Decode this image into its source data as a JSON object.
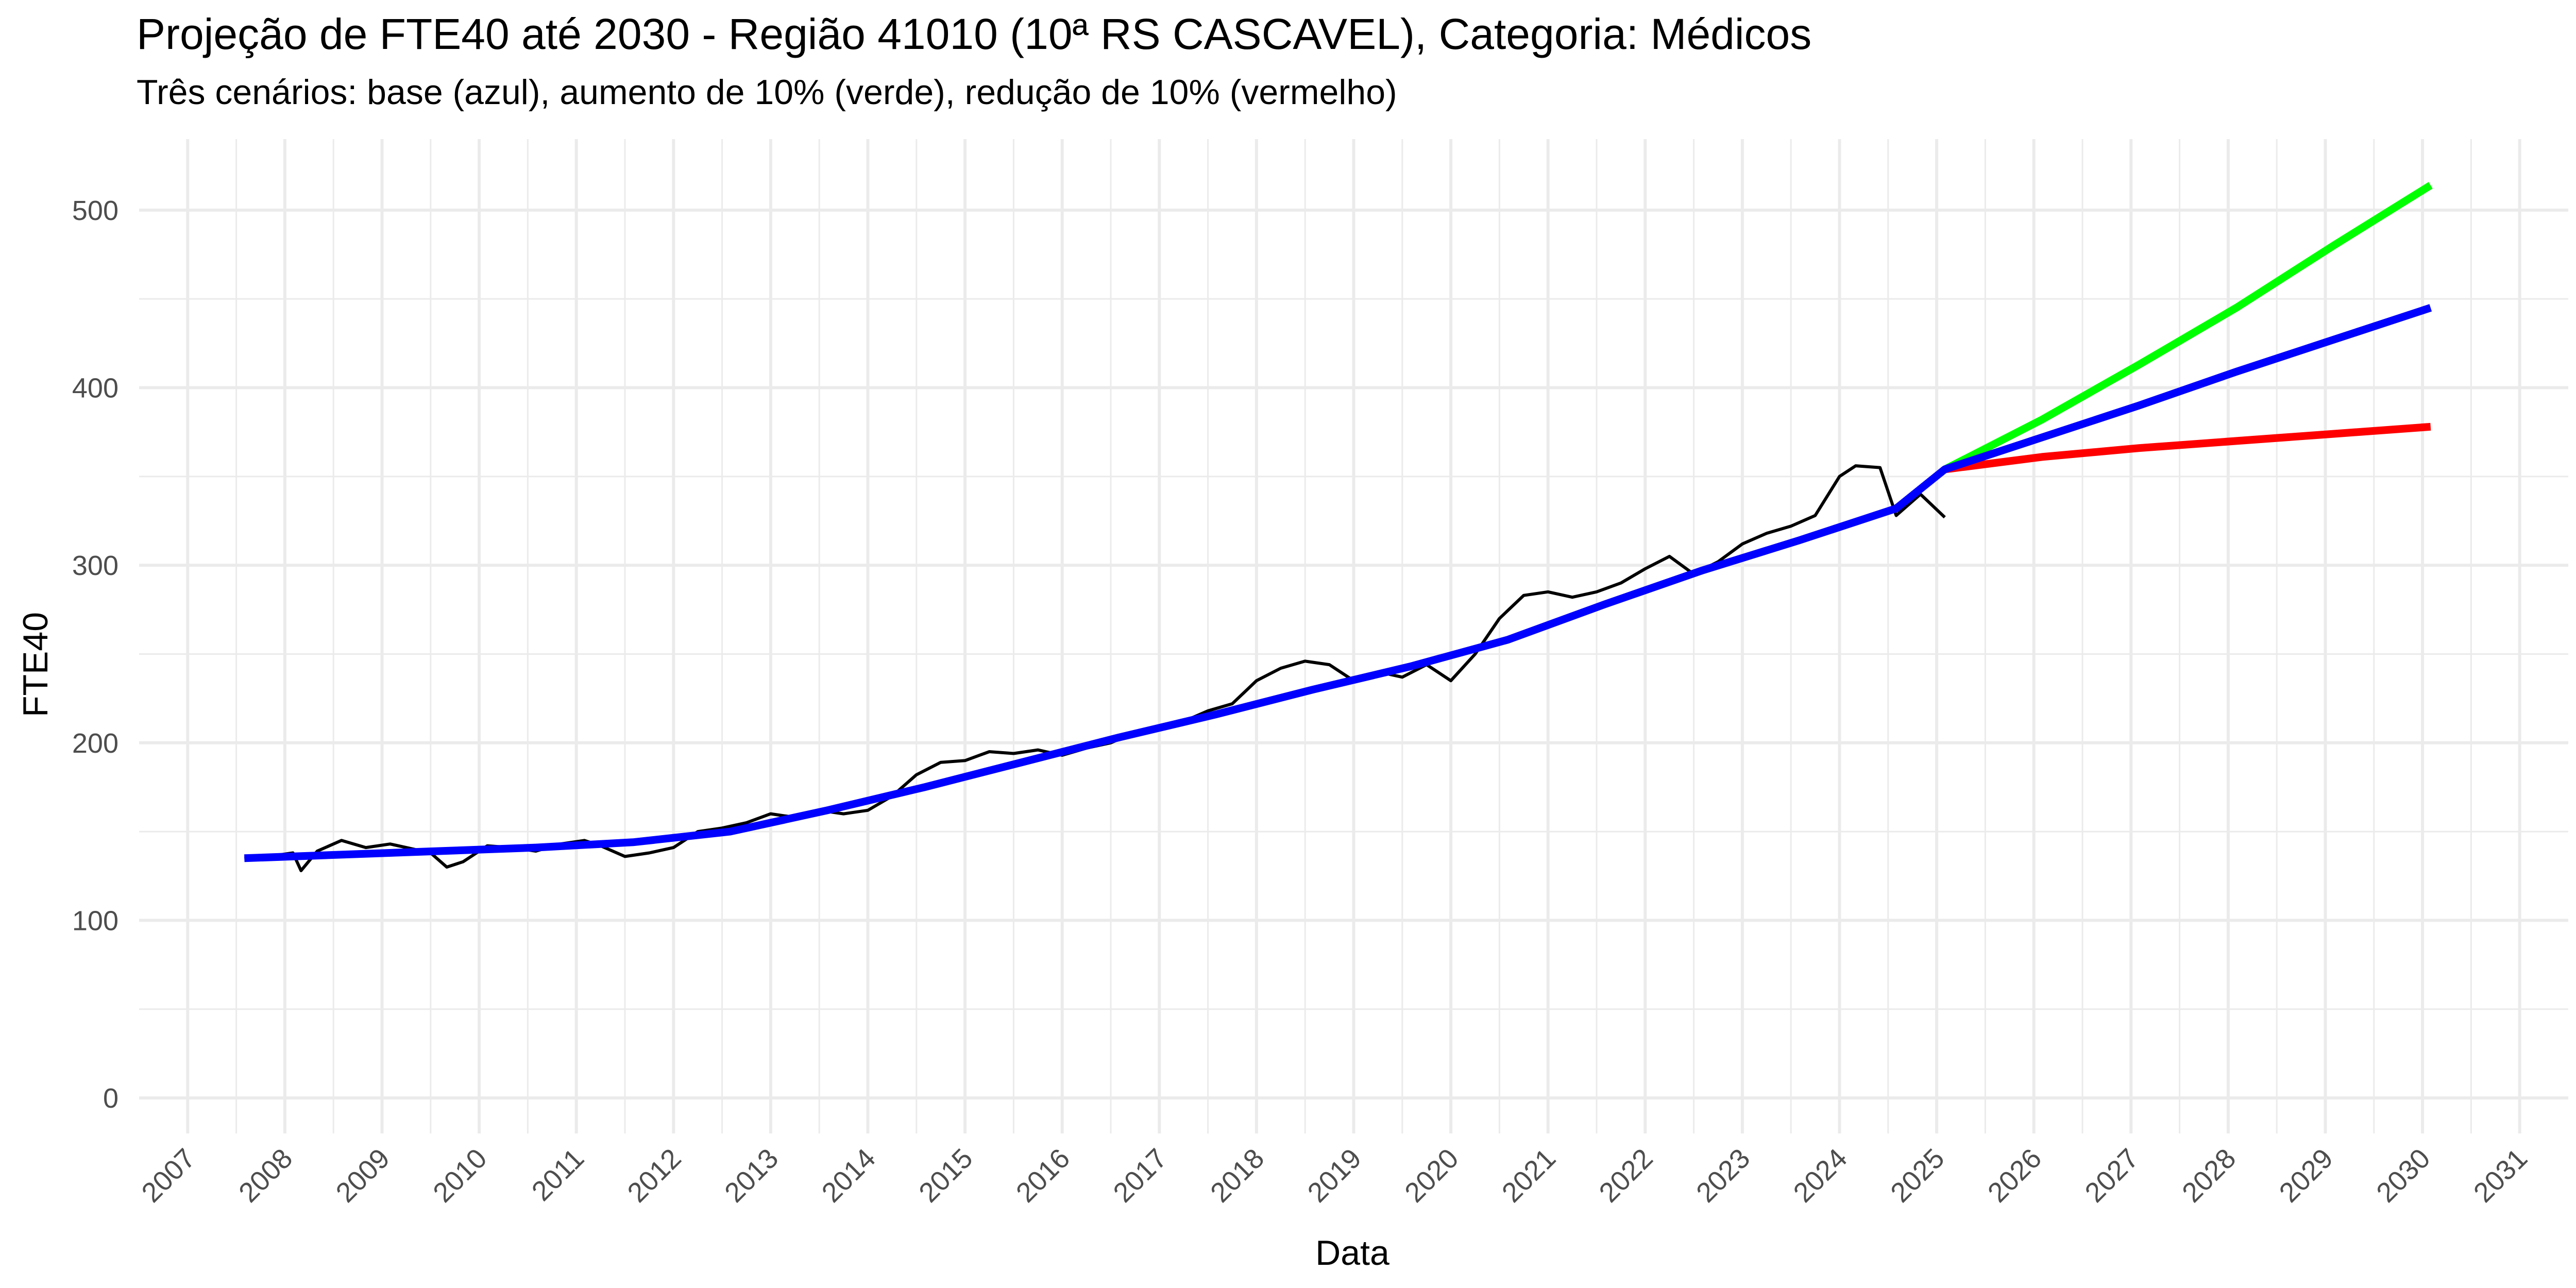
{
  "chart_data": {
    "type": "line",
    "title": "Projeção de FTE40 até 2030 - Região 41010 (10ª RS CASCAVEL), Categoria: Médicos",
    "subtitle": "Três cenários: base (azul), aumento de 10% (verde), redução de 10% (vermelho)",
    "xlabel": "Data",
    "ylabel": "FTE40",
    "xlim": [
      "2006-07-01",
      "2031-07-01"
    ],
    "ylim": [
      -20,
      540
    ],
    "x_ticks": [
      "2007",
      "2008",
      "2009",
      "2010",
      "2011",
      "2012",
      "2013",
      "2014",
      "2015",
      "2016",
      "2017",
      "2018",
      "2019",
      "2020",
      "2021",
      "2022",
      "2023",
      "2024",
      "2025",
      "2026",
      "2027",
      "2028",
      "2029",
      "2030",
      "2031"
    ],
    "y_ticks": [
      0,
      100,
      200,
      300,
      400,
      500
    ],
    "grid": true,
    "legend": "none",
    "colors": {
      "observed": "#000000",
      "base": "#0000ff",
      "increase": "#00ff00",
      "decrease": "#ff0000",
      "grid": "#ebebeb"
    },
    "series": [
      {
        "key": "observed",
        "x": [
          "2007-08",
          "2007-11",
          "2008-02",
          "2008-03",
          "2008-05",
          "2008-08",
          "2008-11",
          "2009-02",
          "2009-04",
          "2009-07",
          "2009-09",
          "2009-11",
          "2010-02",
          "2010-05",
          "2010-08",
          "2010-11",
          "2011-02",
          "2011-04",
          "2011-07",
          "2011-10",
          "2012-01",
          "2012-04",
          "2012-07",
          "2012-10",
          "2013-01",
          "2013-04",
          "2013-07",
          "2013-10",
          "2014-01",
          "2014-04",
          "2014-07",
          "2014-10",
          "2015-01",
          "2015-04",
          "2015-07",
          "2015-10",
          "2016-01",
          "2016-04",
          "2016-07",
          "2016-10",
          "2017-01",
          "2017-04",
          "2017-07",
          "2017-10",
          "2018-01",
          "2018-04",
          "2018-07",
          "2018-10",
          "2019-01",
          "2019-04",
          "2019-07",
          "2019-10",
          "2020-01",
          "2020-04",
          "2020-07",
          "2020-10",
          "2021-01",
          "2021-04",
          "2021-07",
          "2021-10",
          "2022-01",
          "2022-04",
          "2022-07",
          "2022-10",
          "2023-01",
          "2023-04",
          "2023-07",
          "2023-10",
          "2024-01",
          "2024-03",
          "2024-06",
          "2024-08",
          "2024-11",
          "2025-02"
        ],
        "y": [
          135,
          136,
          138,
          128,
          139,
          145,
          141,
          143,
          141,
          138,
          130,
          133,
          142,
          141,
          139,
          143,
          145,
          142,
          136,
          138,
          141,
          150,
          152,
          155,
          160,
          158,
          162,
          160,
          162,
          170,
          182,
          189,
          190,
          195,
          194,
          196,
          193,
          197,
          200,
          206,
          208,
          212,
          218,
          222,
          235,
          242,
          246,
          244,
          235,
          240,
          237,
          244,
          235,
          250,
          270,
          283,
          285,
          282,
          285,
          290,
          298,
          305,
          295,
          302,
          312,
          318,
          322,
          328,
          350,
          356,
          355,
          328,
          340,
          327
        ]
      },
      {
        "key": "base",
        "x": [
          "2007-08",
          "2008-08",
          "2009-08",
          "2010-08",
          "2011-08",
          "2012-08",
          "2013-08",
          "2014-08",
          "2015-08",
          "2016-08",
          "2017-08",
          "2018-08",
          "2019-08",
          "2020-08",
          "2021-08",
          "2022-08",
          "2023-08",
          "2024-08",
          "2025-02",
          "2026-02",
          "2027-02",
          "2028-02",
          "2029-02",
          "2030-02"
        ],
        "y": [
          135,
          137,
          139,
          141,
          144,
          150,
          162,
          175,
          189,
          203,
          216,
          230,
          243,
          258,
          278,
          297,
          314,
          332,
          354,
          372,
          390,
          409,
          427,
          445
        ]
      },
      {
        "key": "increase",
        "x": [
          "2025-02",
          "2026-02",
          "2027-02",
          "2028-02",
          "2029-02",
          "2030-02"
        ],
        "y": [
          354,
          382,
          413,
          445,
          480,
          514
        ]
      },
      {
        "key": "decrease",
        "x": [
          "2025-02",
          "2026-02",
          "2027-02",
          "2028-02",
          "2029-02",
          "2030-02"
        ],
        "y": [
          354,
          361,
          366,
          370,
          374,
          378
        ]
      }
    ]
  }
}
